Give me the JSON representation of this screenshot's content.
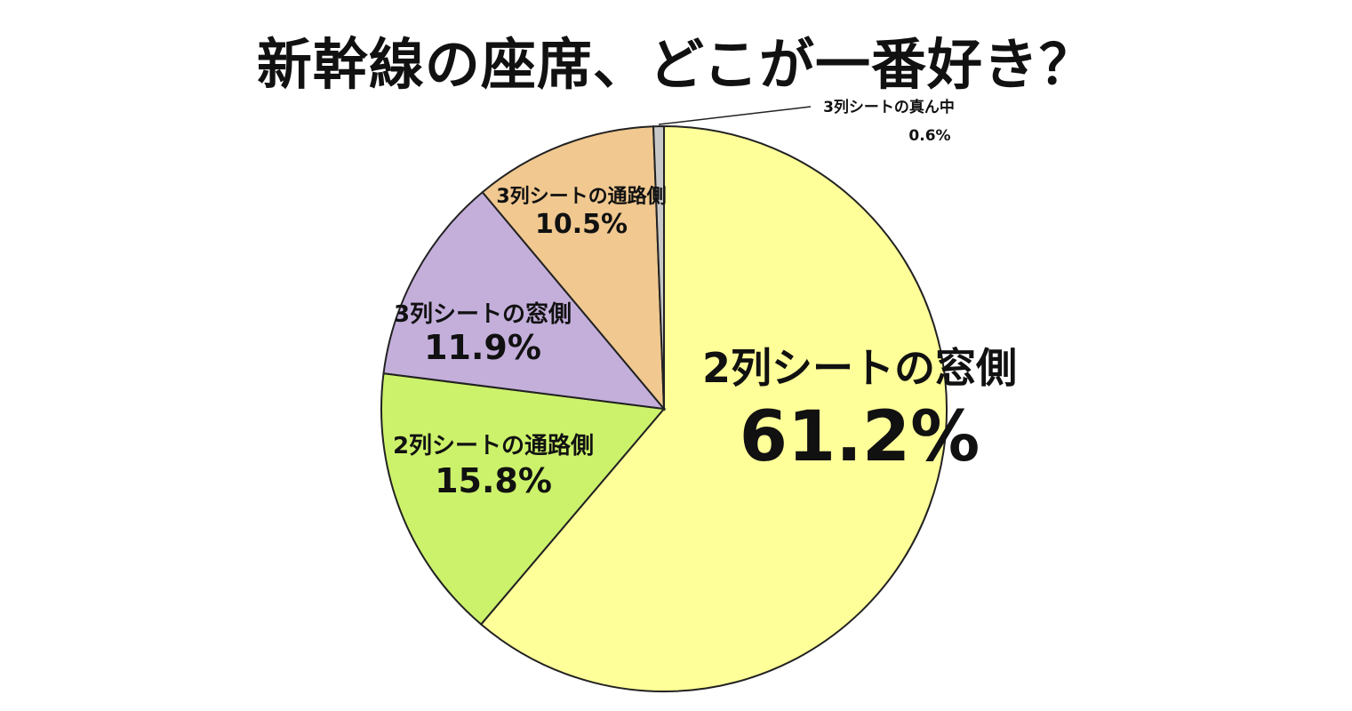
{
  "chart_data": {
    "type": "pie",
    "title": "新幹線の座席、どこが一番好き？",
    "slices": [
      {
        "label": "2列シートの窓側",
        "value": 61.2,
        "value_label": "61.2%",
        "color": "#ffff99"
      },
      {
        "label": "2列シートの通路側",
        "value": 15.8,
        "value_label": "15.8%",
        "color": "#ccf26b"
      },
      {
        "label": "3列シートの窓側",
        "value": 11.9,
        "value_label": "11.9%",
        "color": "#c4afdb"
      },
      {
        "label": "3列シートの通路側",
        "value": 10.5,
        "value_label": "10.5%",
        "color": "#f0c890"
      },
      {
        "label": "3列シートの真ん中",
        "value": 0.6,
        "value_label": "0.6%",
        "color": "#c8c8c8"
      }
    ],
    "start": "12 o'clock",
    "direction": "clockwise",
    "legend": "none"
  }
}
